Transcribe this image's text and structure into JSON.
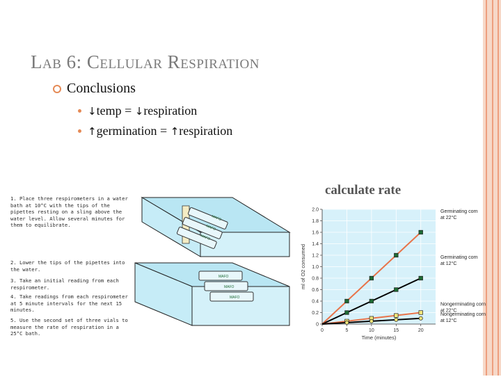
{
  "title": "Lab 6: Cellular Respiration",
  "bullet": "Conclusions",
  "sub_bullets": [
    {
      "arrow_icon": "down-arrow-icon",
      "parts": [
        "↓",
        "temp = ",
        "↓",
        "respiration"
      ]
    },
    {
      "arrow_icon": "up-arrow-icon",
      "parts": [
        "↑",
        "germination = ",
        "↑",
        "respiration"
      ]
    }
  ],
  "calc_label": "calculate rate",
  "steps": [
    {
      "num": "1.",
      "text": "Place three respirometers in a water bath at 10°C with the tips of the pipettes resting on a sling above the water level. Allow several minutes for them to equilibrate."
    },
    {
      "num": "2.",
      "text": "Lower the tips of the pipettes into the water."
    },
    {
      "num": "3.",
      "text": "Take an initial reading from each respirometer."
    },
    {
      "num": "4.",
      "text": "Take readings from each respirometer at 5 minute intervals for the next 15 minutes."
    },
    {
      "num": "5.",
      "text": "Use the second set of three vials to measure the rate of respiration in a 25°C bath."
    }
  ],
  "vial_label": "MAFO",
  "colors": {
    "accent": "#e58a56",
    "title": "#7a7a7a",
    "water": "#c6ecf7",
    "germ": "#1e6b34",
    "nongerm": "#f2e67a"
  },
  "chart_data": {
    "type": "line",
    "xlabel": "Time (minutes)",
    "ylabel": "ml of O2 consumed",
    "x": [
      0,
      5,
      10,
      15,
      20
    ],
    "xticks": [
      "0",
      "5",
      "10",
      "15",
      "20"
    ],
    "yticks": [
      "0",
      "0.2",
      "0.4",
      "0.6",
      "0.8",
      "1.0",
      "1.2",
      "1.4",
      "1.6",
      "1.8",
      "2.0"
    ],
    "xlim": [
      0,
      23
    ],
    "ylim": [
      0,
      2.0
    ],
    "grid": true,
    "series": [
      {
        "name": "Germinating corn at 22°C",
        "values": [
          0,
          0.4,
          0.8,
          1.2,
          1.6
        ],
        "color": "#e8744a",
        "marker": "#1e6b34",
        "markerShape": "square"
      },
      {
        "name": "Germinating corn at 12°C",
        "values": [
          0,
          0.2,
          0.4,
          0.6,
          0.8
        ],
        "color": "#000000",
        "marker": "#1e6b34",
        "markerShape": "square"
      },
      {
        "name": "Nongerminating corn at 22°C",
        "values": [
          0,
          0.05,
          0.1,
          0.15,
          0.2
        ],
        "color": "#e8744a",
        "marker": "#f2e67a",
        "markerShape": "square"
      },
      {
        "name": "Nongerminating corn at 12°C",
        "values": [
          0,
          0.025,
          0.05,
          0.075,
          0.1
        ],
        "color": "#000000",
        "marker": "#f2e67a",
        "markerShape": "circle"
      }
    ]
  }
}
